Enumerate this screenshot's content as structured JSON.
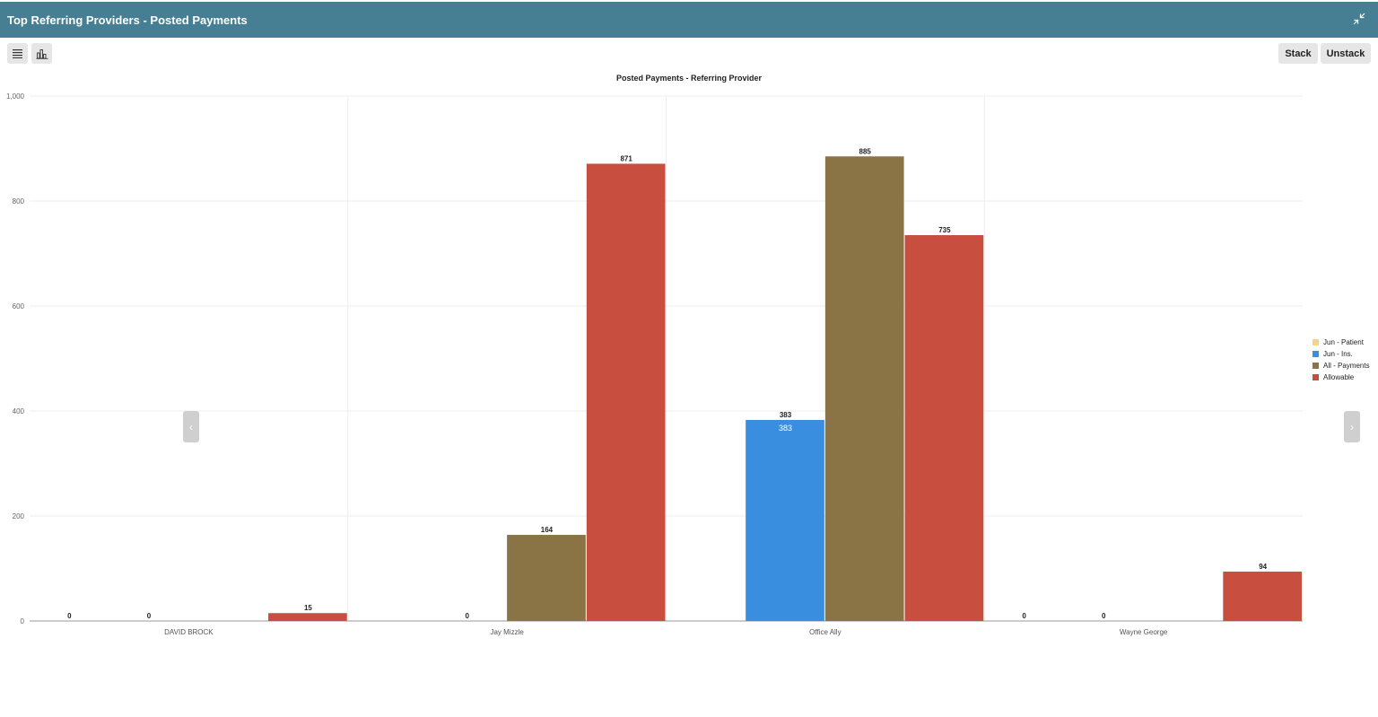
{
  "header": {
    "title": "Top Referring Providers - Posted Payments"
  },
  "toolbar": {
    "stack_label": "Stack",
    "unstack_label": "Unstack"
  },
  "chart_data": {
    "type": "bar",
    "title": "Posted Payments - Referring Provider",
    "xlabel": "",
    "ylabel": "",
    "ylim": [
      0,
      1000
    ],
    "yticks": [
      0,
      200,
      400,
      600,
      800,
      1000
    ],
    "ytick_labels": [
      "0",
      "200",
      "400",
      "600",
      "800",
      "1,000"
    ],
    "categories": [
      "DAVID BROCK",
      "Jay Mizzle",
      "Office Ally",
      "Wayne George"
    ],
    "series": [
      {
        "name": "Jun - Patient",
        "color": "#f0d68a",
        "values": [
          0,
          null,
          null,
          0
        ]
      },
      {
        "name": "Jun - Ins.",
        "color": "#3a8ee0",
        "values": [
          0,
          0,
          383,
          0
        ]
      },
      {
        "name": "All - Payments",
        "color": "#8a7344",
        "values": [
          null,
          164,
          885,
          null
        ]
      },
      {
        "name": "Allowable",
        "color": "#c84e40",
        "values": [
          15,
          871,
          735,
          94
        ]
      }
    ],
    "legend_position": "right",
    "grid": true
  }
}
